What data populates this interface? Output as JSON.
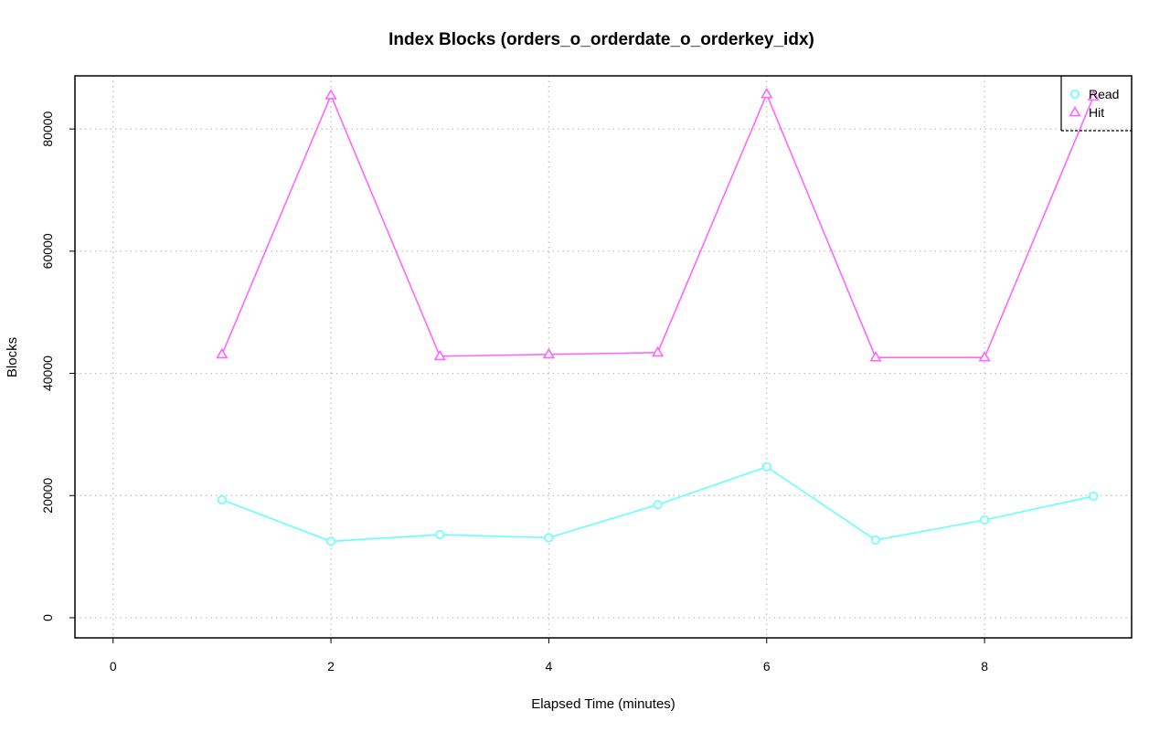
{
  "chart_data": {
    "type": "line",
    "title": "Index Blocks (orders_o_orderdate_o_orderkey_idx)",
    "xlabel": "Elapsed Time (minutes)",
    "ylabel": "Blocks",
    "xlim": [
      -0.35,
      9.35
    ],
    "ylim": [
      -3300,
      88700
    ],
    "xticks": [
      0,
      2,
      4,
      6,
      8
    ],
    "yticks": [
      0,
      20000,
      40000,
      60000,
      80000
    ],
    "grid": true,
    "legend_position": "top-right",
    "x": [
      1,
      2,
      3,
      4,
      5,
      6,
      7,
      8,
      9
    ],
    "series": [
      {
        "name": "Read",
        "color": "#66ffff",
        "marker": "circle",
        "values": [
          19300,
          12500,
          13600,
          13100,
          18500,
          24700,
          12700,
          16000,
          19900
        ]
      },
      {
        "name": "Hit",
        "color": "#ff66ff",
        "marker": "triangle",
        "values": [
          43100,
          85500,
          42800,
          43100,
          43400,
          85700,
          42600,
          42600,
          85300
        ]
      }
    ]
  }
}
